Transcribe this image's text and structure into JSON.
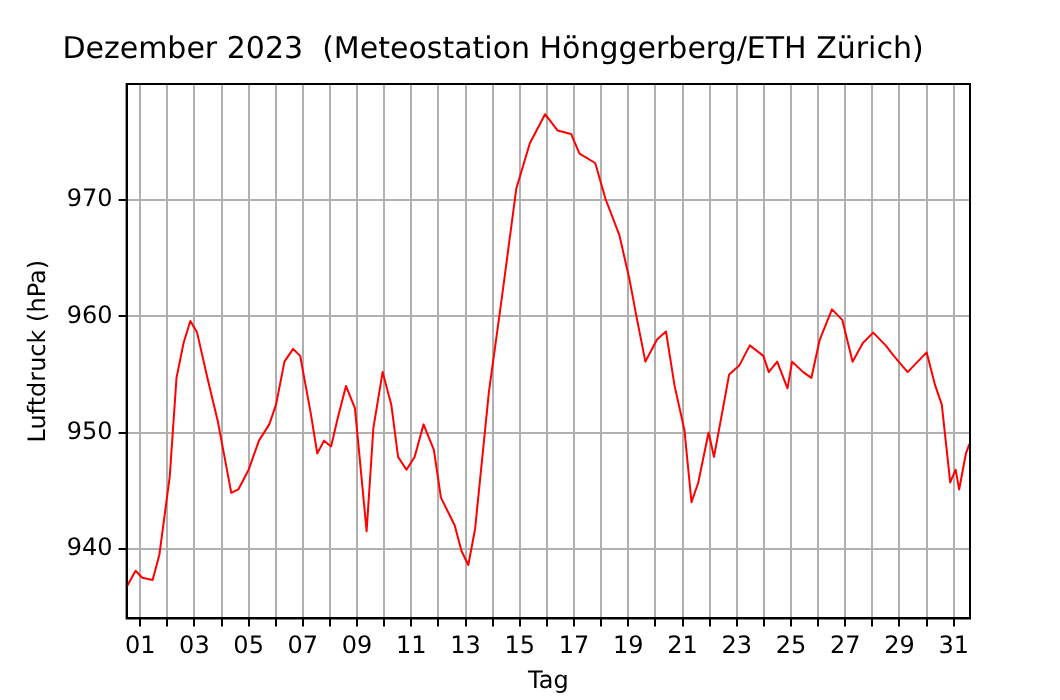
{
  "chart_data": {
    "type": "line",
    "title": "Dezember 2023  (Meteostation Hönggerberg/ETH Zürich)",
    "xlabel": "Tag",
    "ylabel": "Luftdruck (hPa)",
    "x": [
      0.5,
      0.83,
      1.08,
      1.46,
      1.71,
      2.09,
      2.34,
      2.6,
      2.85,
      3.1,
      3.48,
      3.86,
      4.11,
      4.36,
      4.62,
      5,
      5.38,
      5.76,
      6.01,
      6.32,
      6.64,
      6.9,
      7.28,
      7.53,
      7.78,
      8.04,
      8.29,
      8.59,
      8.92,
      9.35,
      9.6,
      9.94,
      10.26,
      10.51,
      10.82,
      11.12,
      11.45,
      11.83,
      12.09,
      12.6,
      12.85,
      13.1,
      13.35,
      13.86,
      14.36,
      14.87,
      15.37,
      15.93,
      16.39,
      16.89,
      17.2,
      17.78,
      18.16,
      18.67,
      19.05,
      19.3,
      19.63,
      20.06,
      20.39,
      20.7,
      21.07,
      21.33,
      21.58,
      21.96,
      22.16,
      22.72,
      23.1,
      23.48,
      23.98,
      24.18,
      24.49,
      24.87,
      25.04,
      25.45,
      25.75,
      26.06,
      26.51,
      26.89,
      27.27,
      27.65,
      28.03,
      28.49,
      28.79,
      29.3,
      30,
      30.31,
      30.56,
      30.87,
      31.07,
      31.2,
      31.45,
      31.58
    ],
    "series": [
      {
        "color": "#ff0000",
        "values": [
          936.7,
          938.1,
          937.5,
          937.3,
          939.5,
          946.2,
          954.7,
          957.7,
          959.6,
          958.6,
          954.7,
          951,
          947.9,
          944.8,
          945.1,
          946.8,
          949.3,
          950.7,
          952.4,
          956.1,
          957.2,
          956.6,
          951.8,
          948.2,
          949.3,
          948.8,
          951.3,
          954,
          952.1,
          941.5,
          950.4,
          955.2,
          952.4,
          947.9,
          946.8,
          947.9,
          950.7,
          948.5,
          944.4,
          942,
          939.8,
          938.6,
          941.7,
          953.5,
          962,
          971,
          974.9,
          977.4,
          976,
          975.7,
          974,
          973.2,
          970.1,
          967,
          963.1,
          960,
          956.1,
          958,
          958.7,
          954.1,
          950.2,
          944,
          945.7,
          950,
          947.9,
          955,
          955.8,
          957.5,
          956.6,
          955.2,
          956.1,
          953.8,
          956.1,
          955.2,
          954.7,
          958,
          960.6,
          959.7,
          956.1,
          957.7,
          958.6,
          957.5,
          956.6,
          955.2,
          956.9,
          954.1,
          952.4,
          945.7,
          946.8,
          945.1,
          948.2,
          949
        ]
      }
    ],
    "xlim": [
      0.5,
      31.6
    ],
    "xticks": [
      {
        "value": 1,
        "label": "01"
      },
      {
        "value": 2,
        "label": null
      },
      {
        "value": 3,
        "label": "03"
      },
      {
        "value": 4,
        "label": null
      },
      {
        "value": 5,
        "label": "05"
      },
      {
        "value": 6,
        "label": null
      },
      {
        "value": 7,
        "label": "07"
      },
      {
        "value": 8,
        "label": null
      },
      {
        "value": 9,
        "label": "09"
      },
      {
        "value": 10,
        "label": null
      },
      {
        "value": 11,
        "label": "11"
      },
      {
        "value": 12,
        "label": null
      },
      {
        "value": 13,
        "label": "13"
      },
      {
        "value": 14,
        "label": null
      },
      {
        "value": 15,
        "label": "15"
      },
      {
        "value": 16,
        "label": null
      },
      {
        "value": 17,
        "label": "17"
      },
      {
        "value": 18,
        "label": null
      },
      {
        "value": 19,
        "label": "19"
      },
      {
        "value": 20,
        "label": null
      },
      {
        "value": 21,
        "label": "21"
      },
      {
        "value": 22,
        "label": null
      },
      {
        "value": 23,
        "label": "23"
      },
      {
        "value": 24,
        "label": null
      },
      {
        "value": 25,
        "label": "25"
      },
      {
        "value": 26,
        "label": null
      },
      {
        "value": 27,
        "label": "27"
      },
      {
        "value": 28,
        "label": null
      },
      {
        "value": 29,
        "label": "29"
      },
      {
        "value": 30,
        "label": null
      },
      {
        "value": 31,
        "label": "31"
      }
    ],
    "ylim": [
      934,
      980
    ],
    "yticks": [
      940,
      950,
      960,
      970
    ],
    "grid": true,
    "legend": false,
    "marker": "none",
    "line_style": "solid"
  }
}
